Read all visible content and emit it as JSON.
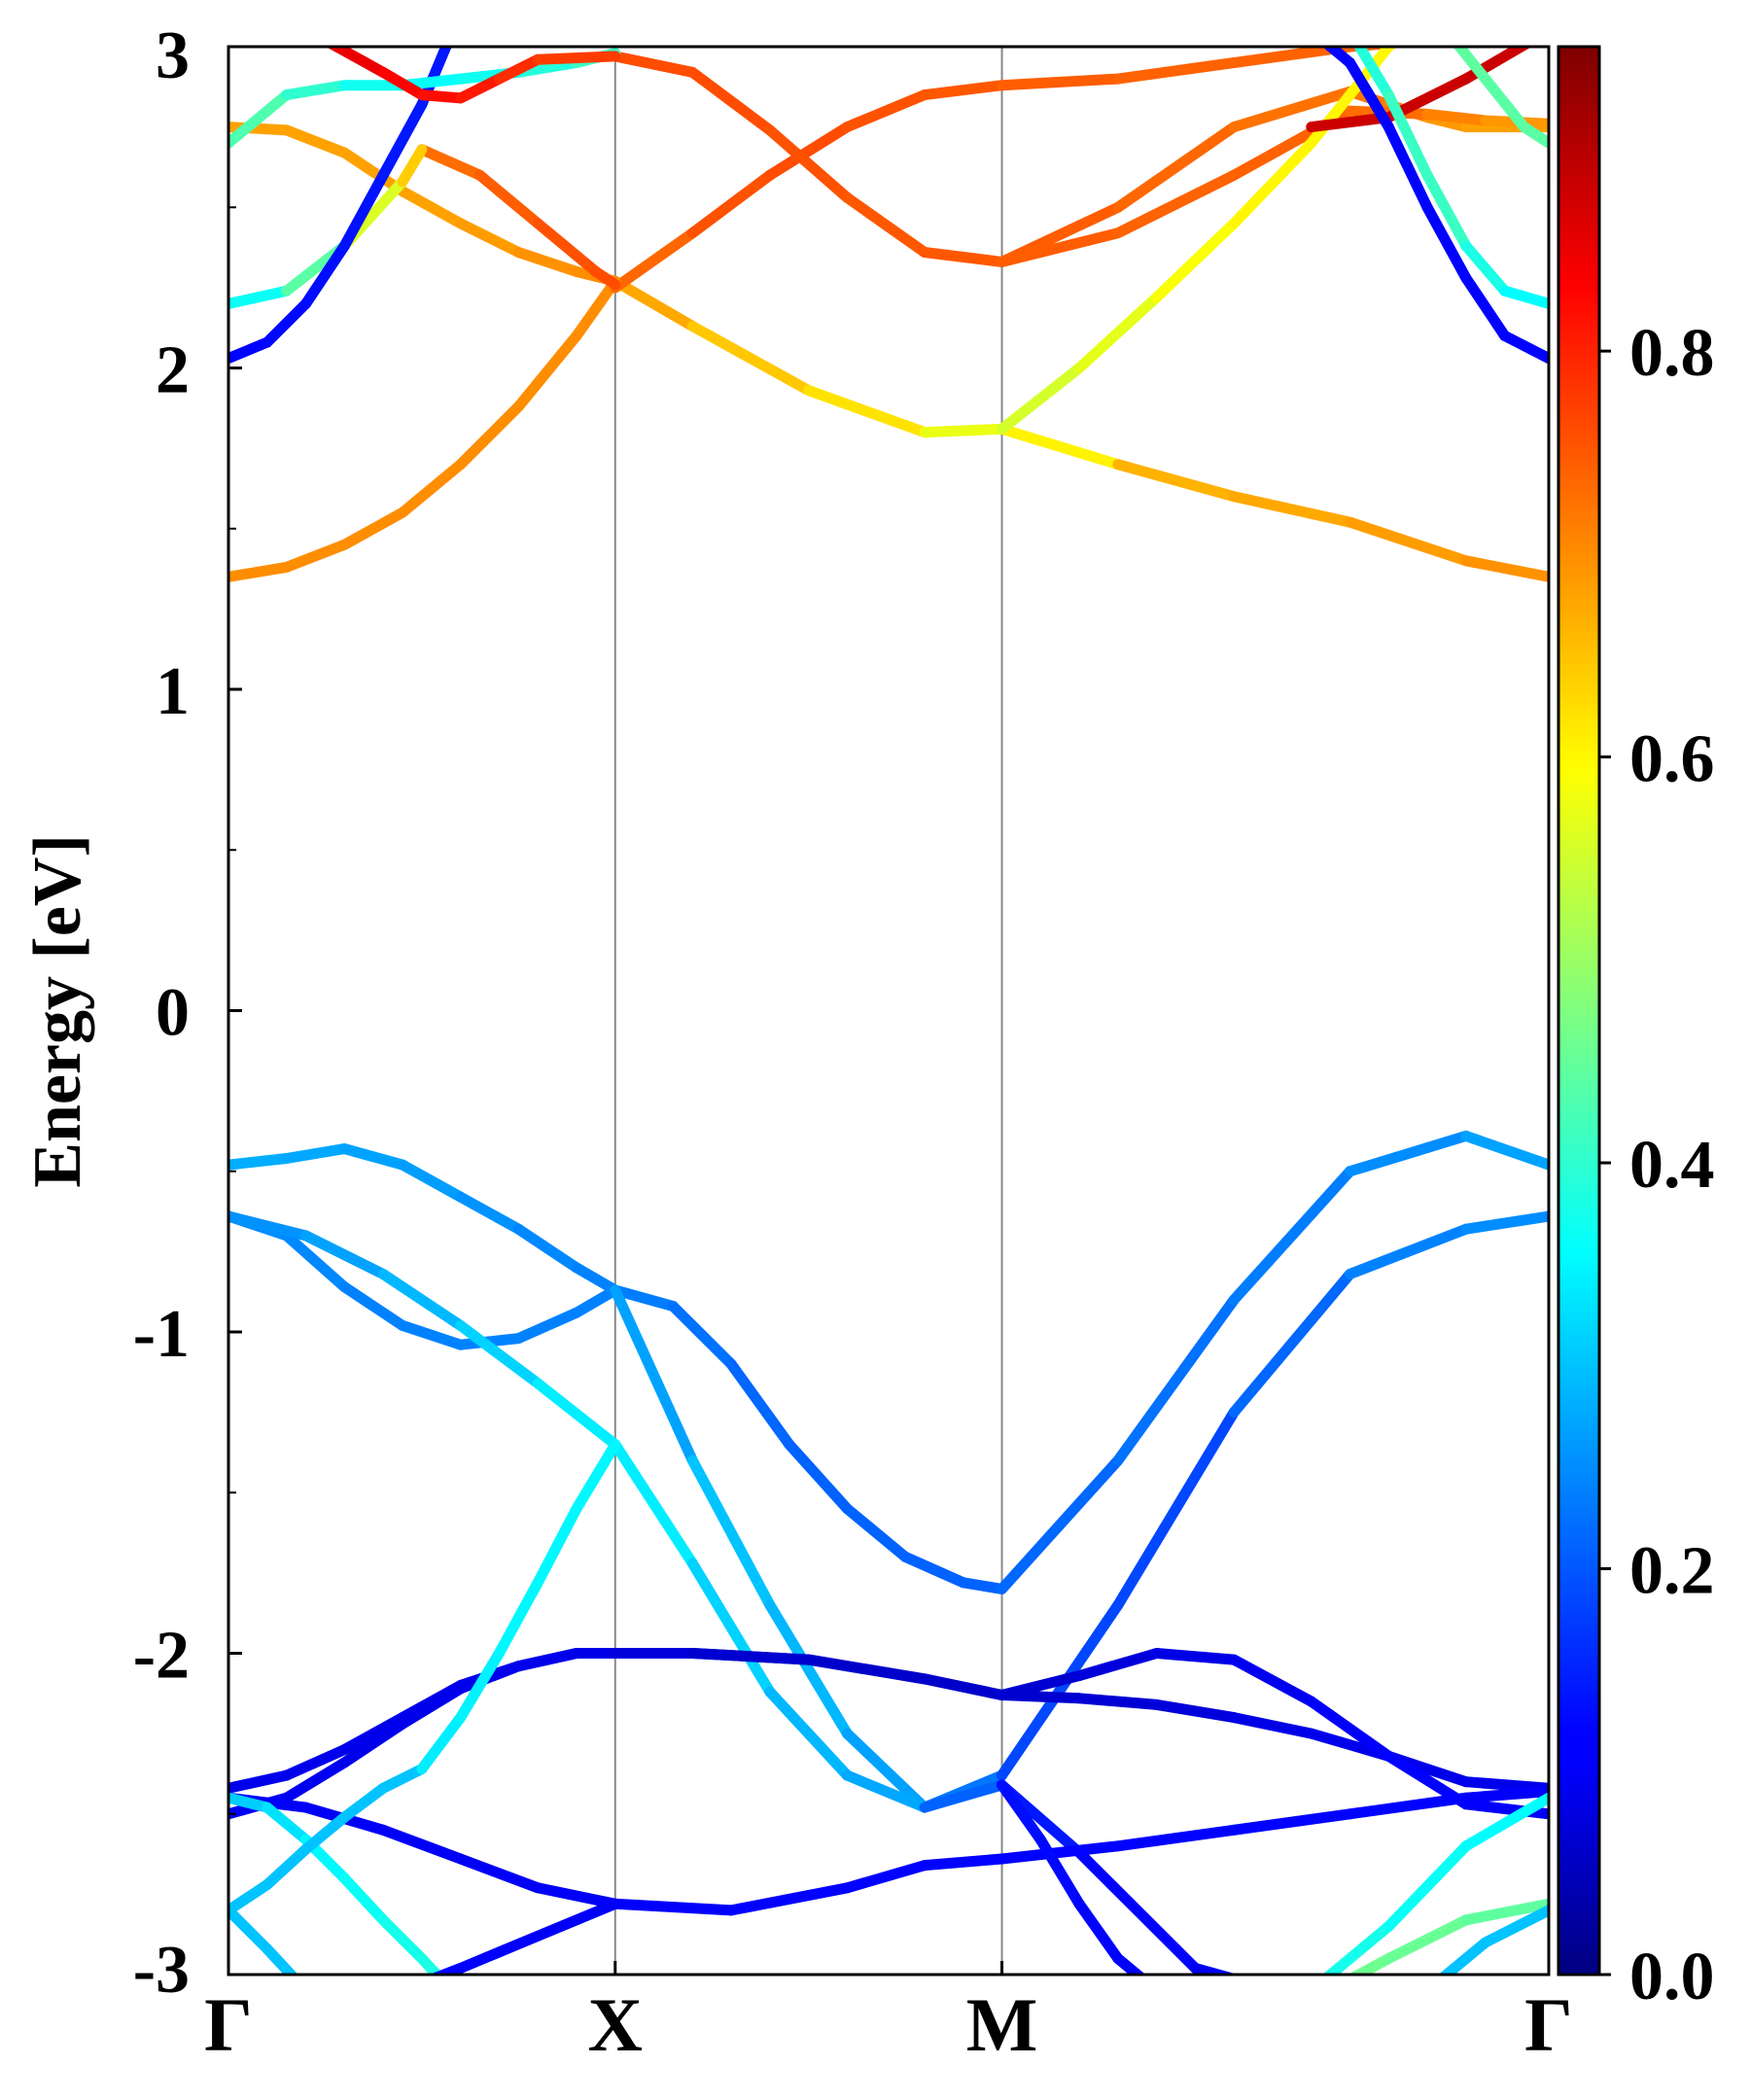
{
  "chart_data": {
    "type": "line",
    "title": "",
    "xlabel": "",
    "ylabel": "Energy [eV]",
    "ylim": [
      -3,
      3
    ],
    "x_ticks": [
      "Γ",
      "X",
      "M",
      "Γ"
    ],
    "y_ticks": [
      "3",
      "2",
      "1",
      "0",
      "-1",
      "-2",
      "-3"
    ],
    "x_positions": [
      0,
      1,
      2,
      3.414
    ],
    "grid": false,
    "kpath_lines": true,
    "colormap": "jet",
    "colorbar": {
      "range": [
        0,
        0.95
      ],
      "ticks": [
        "0.0",
        "0.2",
        "0.4",
        "0.6",
        "0.8"
      ]
    },
    "series": [
      {
        "x": [
          0,
          0.15,
          0.3,
          0.45,
          0.6,
          0.75,
          0.9,
          1.0,
          1.15,
          1.3,
          1.45,
          1.6,
          1.75,
          1.9,
          2.0,
          2.3,
          2.6,
          2.9,
          3.2,
          3.414
        ],
        "y": [
          -0.48,
          -0.46,
          -0.43,
          -0.48,
          -0.58,
          -0.68,
          -0.8,
          -0.87,
          -0.92,
          -1.1,
          -1.35,
          -1.55,
          -1.7,
          -1.78,
          -1.8,
          -1.4,
          -0.9,
          -0.5,
          -0.39,
          -0.48
        ],
        "c": [
          0.28,
          0.28,
          0.27,
          0.27,
          0.26,
          0.25,
          0.24,
          0.24,
          0.23,
          0.22,
          0.21,
          0.21,
          0.21,
          0.21,
          0.21,
          0.22,
          0.23,
          0.24,
          0.26,
          0.28
        ]
      },
      {
        "x": [
          0,
          0.15,
          0.3,
          0.45,
          0.6,
          0.75,
          0.9,
          1.0,
          1.2,
          1.4,
          1.6,
          1.8,
          2.0,
          2.3,
          2.6,
          2.9,
          3.2,
          3.414
        ],
        "y": [
          -0.64,
          -0.7,
          -0.86,
          -0.98,
          -1.04,
          -1.02,
          -0.94,
          -0.87,
          -1.4,
          -1.85,
          -2.25,
          -2.48,
          -2.38,
          -1.85,
          -1.25,
          -0.82,
          -0.68,
          -0.64
        ],
        "c": [
          0.25,
          0.25,
          0.24,
          0.24,
          0.24,
          0.24,
          0.24,
          0.24,
          0.3,
          0.3,
          0.28,
          0.26,
          0.2,
          0.17,
          0.2,
          0.23,
          0.25,
          0.25
        ]
      },
      {
        "x": [
          0,
          0.2,
          0.4,
          0.6,
          0.8,
          1.0,
          1.2,
          1.4,
          1.6,
          1.8,
          2.0,
          2.2,
          2.5,
          2.8,
          3.1,
          3.414
        ],
        "y": [
          -0.64,
          -0.7,
          -0.82,
          -0.98,
          -1.16,
          -1.35,
          -1.72,
          -2.12,
          -2.38,
          -2.48,
          -2.41,
          -2.62,
          -2.98,
          -3.08,
          -3.06,
          -3.05
        ],
        "c": [
          0.25,
          0.26,
          0.28,
          0.3,
          0.33,
          0.35,
          0.33,
          0.3,
          0.28,
          0.27,
          0.15,
          0.13,
          0.11,
          0.1,
          0.1,
          0.1
        ]
      },
      {
        "x": [
          0,
          0.15,
          0.3,
          0.45,
          0.6,
          0.75,
          0.9,
          1.0,
          1.2,
          1.5,
          1.8,
          2.0,
          2.2,
          2.4,
          2.6,
          2.8,
          3.0,
          3.2,
          3.414
        ],
        "y": [
          -2.42,
          -2.38,
          -2.3,
          -2.2,
          -2.1,
          -2.04,
          -2.0,
          -2.0,
          -2.0,
          -2.02,
          -2.08,
          -2.13,
          -2.14,
          -2.16,
          -2.2,
          -2.25,
          -2.32,
          -2.4,
          -2.42
        ],
        "c": [
          0.1,
          0.1,
          0.1,
          0.1,
          0.1,
          0.1,
          0.1,
          0.09,
          0.08,
          0.07,
          0.07,
          0.07,
          0.08,
          0.08,
          0.09,
          0.1,
          0.1,
          0.1,
          0.1
        ]
      },
      {
        "x": [
          0,
          0.15,
          0.3,
          0.45,
          0.6,
          0.75,
          0.9,
          1.0,
          1.2,
          1.5,
          1.8,
          2.0,
          2.2,
          2.4,
          2.6,
          2.8,
          3.0,
          3.2,
          3.414
        ],
        "y": [
          -2.5,
          -2.45,
          -2.34,
          -2.22,
          -2.11,
          -2.04,
          -2.0,
          -2.0,
          -2.0,
          -2.02,
          -2.08,
          -2.13,
          -2.07,
          -2.0,
          -2.02,
          -2.15,
          -2.32,
          -2.47,
          -2.5
        ],
        "c": [
          0.11,
          0.11,
          0.1,
          0.1,
          0.1,
          0.1,
          0.1,
          0.09,
          0.08,
          0.07,
          0.07,
          0.07,
          0.08,
          0.09,
          0.1,
          0.11,
          0.12,
          0.12,
          0.11
        ]
      },
      {
        "x": [
          0,
          0.2,
          0.4,
          0.6,
          0.8,
          1.0,
          1.3,
          1.6,
          1.8,
          2.0,
          2.3,
          2.6,
          2.9,
          3.2,
          3.414
        ],
        "y": [
          -2.45,
          -2.48,
          -2.55,
          -2.64,
          -2.73,
          -2.78,
          -2.8,
          -2.73,
          -2.66,
          -2.64,
          -2.6,
          -2.55,
          -2.5,
          -2.45,
          -2.43
        ],
        "c": [
          0.11,
          0.11,
          0.11,
          0.11,
          0.11,
          0.11,
          0.12,
          0.12,
          0.12,
          0.12,
          0.12,
          0.12,
          0.12,
          0.12,
          0.11
        ]
      },
      {
        "x": [
          0,
          0.1,
          0.2,
          0.3,
          0.4,
          0.5,
          0.6
        ],
        "y": [
          -2.45,
          -2.48,
          -2.58,
          -2.7,
          -2.83,
          -2.95,
          -3.08
        ],
        "c": [
          0.3,
          0.32,
          0.34,
          0.36,
          0.37,
          0.38,
          0.38
        ]
      },
      {
        "x": [
          0,
          0.1,
          0.2
        ],
        "y": [
          -2.8,
          -2.92,
          -3.05
        ],
        "c": [
          0.3,
          0.3,
          0.3
        ]
      },
      {
        "x": [
          0,
          0.1,
          0.2,
          0.3,
          0.4,
          0.5
        ],
        "y": [
          -2.8,
          -2.72,
          -2.61,
          -2.51,
          -2.42,
          -2.36
        ],
        "c": [
          0.3,
          0.3,
          0.3,
          0.3,
          0.3,
          0.3
        ]
      },
      {
        "x": [
          0.5,
          0.6,
          0.7,
          0.8,
          0.9,
          1.0
        ],
        "y": [
          -2.36,
          -2.2,
          -2.0,
          -1.78,
          -1.55,
          -1.35
        ],
        "c": [
          0.34,
          0.34,
          0.35,
          0.35,
          0.35,
          0.35
        ]
      },
      {
        "x": [
          0.45,
          0.6,
          0.8,
          1.0
        ],
        "y": [
          -3.05,
          -2.98,
          -2.88,
          -2.78
        ],
        "c": [
          0.12,
          0.12,
          0.11,
          0.11
        ]
      },
      {
        "x": [
          2.0,
          2.1,
          2.2,
          2.3,
          2.4
        ],
        "y": [
          -2.41,
          -2.58,
          -2.78,
          -2.95,
          -3.05
        ],
        "c": [
          0.13,
          0.13,
          0.12,
          0.12,
          0.11
        ]
      },
      {
        "x": [
          2.8,
          3.0,
          3.2,
          3.414
        ],
        "y": [
          -3.05,
          -2.85,
          -2.6,
          -2.45
        ],
        "c": [
          0.38,
          0.37,
          0.36,
          0.35
        ]
      },
      {
        "x": [
          2.8,
          3.0,
          3.2,
          3.414
        ],
        "y": [
          -3.08,
          -2.95,
          -2.83,
          -2.78
        ],
        "c": [
          0.46,
          0.46,
          0.45,
          0.44
        ]
      },
      {
        "x": [
          3.1,
          3.25,
          3.414
        ],
        "y": [
          -3.05,
          -2.9,
          -2.8
        ],
        "c": [
          0.3,
          0.3,
          0.3
        ]
      },
      {
        "x": [
          0,
          0.15,
          0.3,
          0.45,
          0.6,
          0.75,
          0.9,
          1.0,
          1.2,
          1.5,
          1.8,
          2.0,
          2.3,
          2.6,
          2.9,
          3.2,
          3.414
        ],
        "y": [
          1.35,
          1.38,
          1.45,
          1.55,
          1.7,
          1.88,
          2.1,
          2.27,
          2.13,
          1.93,
          1.8,
          1.81,
          1.7,
          1.6,
          1.52,
          1.4,
          1.35
        ],
        "c": [
          0.7,
          0.7,
          0.7,
          0.7,
          0.7,
          0.7,
          0.7,
          0.7,
          0.65,
          0.64,
          0.6,
          0.55,
          0.66,
          0.67,
          0.68,
          0.69,
          0.7
        ]
      },
      {
        "x": [
          1.0,
          1.2,
          1.4,
          1.6,
          1.8,
          2.0,
          2.3,
          2.6,
          2.9,
          3.1,
          3.25,
          3.35,
          3.414
        ],
        "y": [
          2.25,
          2.42,
          2.6,
          2.75,
          2.85,
          2.88,
          2.9,
          2.95,
          3.0,
          3.02,
          3.05,
          3.1,
          3.15
        ],
        "c": [
          0.72,
          0.75,
          0.76,
          0.76,
          0.75,
          0.75,
          0.74,
          0.74,
          0.74,
          0.74,
          0.74,
          0.74,
          0.74
        ]
      },
      {
        "x": [
          1.0,
          1.2,
          1.4,
          1.6,
          1.8,
          2.0,
          2.3,
          2.6,
          2.9,
          3.0,
          3.1,
          3.2,
          3.3,
          3.414
        ],
        "y": [
          2.97,
          2.92,
          2.74,
          2.53,
          2.36,
          2.33,
          2.5,
          2.75,
          2.86,
          2.82,
          2.78,
          2.75,
          2.75,
          2.75
        ],
        "c": [
          0.76,
          0.76,
          0.76,
          0.75,
          0.75,
          0.75,
          0.74,
          0.73,
          0.72,
          0.72,
          0.7,
          0.68,
          0.68,
          0.68
        ]
      },
      {
        "x": [
          2.0,
          2.3,
          2.6,
          2.9,
          3.1,
          3.25,
          3.414
        ],
        "y": [
          2.33,
          2.42,
          2.6,
          2.8,
          2.79,
          2.77,
          2.76
        ],
        "c": [
          0.75,
          0.74,
          0.74,
          0.74,
          0.72,
          0.7,
          0.68
        ]
      },
      {
        "x": [
          2.0,
          2.2,
          2.4,
          2.6,
          2.8,
          3.0,
          3.2
        ],
        "y": [
          1.81,
          2.0,
          2.22,
          2.45,
          2.7,
          3.0,
          3.2
        ],
        "c": [
          0.55,
          0.56,
          0.58,
          0.6,
          0.6,
          0.6,
          0.6
        ]
      },
      {
        "x": [
          0,
          0.15,
          0.3,
          0.45,
          0.6,
          0.75,
          0.9,
          1.0
        ],
        "y": [
          2.75,
          2.74,
          2.67,
          2.55,
          2.45,
          2.36,
          2.3,
          2.27
        ],
        "c": [
          0.68,
          0.68,
          0.68,
          0.68,
          0.68,
          0.69,
          0.7,
          0.7
        ]
      },
      {
        "x": [
          0.5,
          0.65,
          0.8,
          0.95,
          1.0
        ],
        "y": [
          2.68,
          2.6,
          2.45,
          2.3,
          2.26
        ],
        "c": [
          0.72,
          0.74,
          0.75,
          0.76,
          0.76
        ]
      },
      {
        "x": [
          0,
          0.15,
          0.3,
          0.45,
          0.5
        ],
        "y": [
          2.2,
          2.24,
          2.38,
          2.58,
          2.68
        ],
        "c": [
          0.35,
          0.38,
          0.5,
          0.62,
          0.66
        ]
      },
      {
        "x": [
          0,
          0.1,
          0.2,
          0.3,
          0.4,
          0.5,
          0.58
        ],
        "y": [
          2.03,
          2.08,
          2.2,
          2.38,
          2.6,
          2.82,
          3.05
        ],
        "c": [
          0.12,
          0.12,
          0.13,
          0.13,
          0.14,
          0.14,
          0.14
        ]
      },
      {
        "x": [
          0,
          0.15,
          0.3,
          0.45,
          0.6,
          0.75,
          0.9,
          1.0
        ],
        "y": [
          2.7,
          2.85,
          2.88,
          2.88,
          2.9,
          2.92,
          2.95,
          2.98
        ],
        "c": [
          0.44,
          0.42,
          0.38,
          0.36,
          0.36,
          0.38,
          0.4,
          0.42
        ]
      },
      {
        "x": [
          0.25,
          0.4,
          0.5,
          0.6,
          0.7,
          0.8,
          1.0
        ],
        "y": [
          3.02,
          2.92,
          2.85,
          2.84,
          2.9,
          2.96,
          2.97
        ],
        "c": [
          0.86,
          0.84,
          0.82,
          0.82,
          0.8,
          0.78,
          0.77
        ]
      },
      {
        "x": [
          2.8,
          3.0,
          3.2,
          3.414
        ],
        "y": [
          2.75,
          2.78,
          2.9,
          3.05
        ],
        "c": [
          0.88,
          0.88,
          0.88,
          0.88
        ]
      },
      {
        "x": [
          2.9,
          3.0,
          3.1,
          3.2,
          3.3,
          3.414
        ],
        "y": [
          3.05,
          2.85,
          2.6,
          2.38,
          2.24,
          2.2
        ],
        "c": [
          0.38,
          0.4,
          0.42,
          0.4,
          0.36,
          0.35
        ]
      },
      {
        "x": [
          2.8,
          2.9,
          3.0,
          3.1,
          3.2,
          3.3,
          3.414
        ],
        "y": [
          3.05,
          2.95,
          2.75,
          2.5,
          2.28,
          2.1,
          2.03
        ],
        "c": [
          0.12,
          0.12,
          0.12,
          0.12,
          0.12,
          0.12,
          0.12
        ]
      },
      {
        "x": [
          3.15,
          3.25,
          3.35,
          3.414
        ],
        "y": [
          3.05,
          2.9,
          2.75,
          2.7
        ],
        "c": [
          0.45,
          0.44,
          0.44,
          0.44
        ]
      }
    ]
  }
}
